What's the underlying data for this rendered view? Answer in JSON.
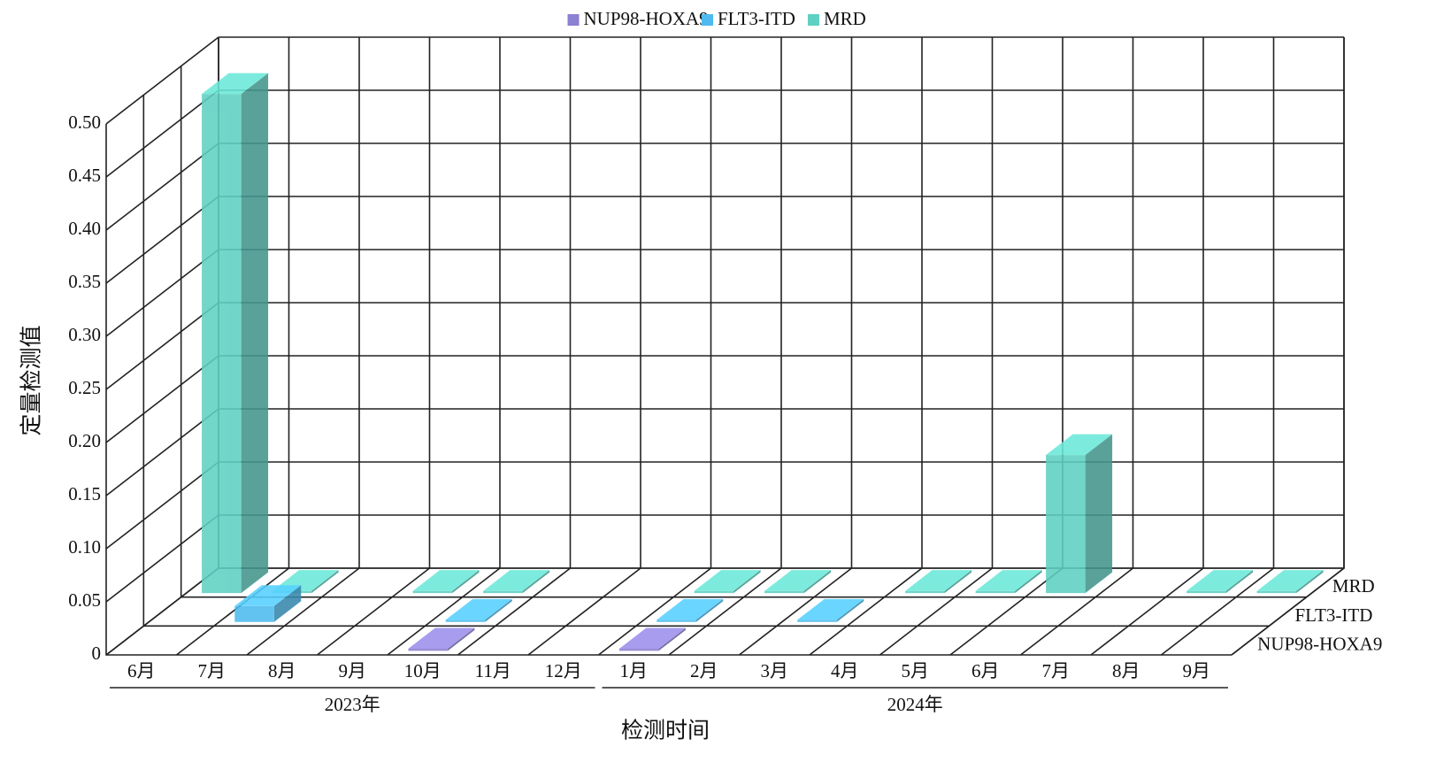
{
  "chart_data": {
    "type": "bar3d",
    "y_label": "定量检测值",
    "x_label": "检测时间",
    "categories": [
      "6月",
      "7月",
      "8月",
      "9月",
      "10月",
      "11月",
      "12月",
      "1月",
      "2月",
      "3月",
      "4月",
      "5月",
      "6月",
      "7月",
      "8月",
      "9月"
    ],
    "x_groups": [
      {
        "label": "2023年",
        "count": 7
      },
      {
        "label": "2024年",
        "count": 9
      }
    ],
    "series": [
      {
        "name": "NUP98-HOXA9",
        "color": "#8b80d2",
        "values": [
          null,
          null,
          null,
          null,
          0.002,
          null,
          null,
          0.002,
          null,
          null,
          null,
          null,
          null,
          null,
          null,
          null
        ]
      },
      {
        "name": "FLT3-ITD",
        "color": "#4dbbef",
        "values": [
          null,
          0.015,
          null,
          null,
          0.002,
          null,
          null,
          0.002,
          null,
          0.002,
          null,
          null,
          null,
          null,
          null,
          null
        ]
      },
      {
        "name": "MRD",
        "color": "#5fd0c2",
        "values": [
          0.47,
          0.002,
          null,
          0.002,
          0.002,
          null,
          null,
          0.002,
          0.002,
          null,
          0.002,
          0.002,
          0.13,
          null,
          0.002,
          0.002
        ]
      }
    ],
    "ylim": [
      0,
      0.5
    ],
    "yticks": [
      0,
      0.05,
      {
        "value": 0.1,
        "label": "0.10"
      },
      0.15,
      {
        "value": 0.2,
        "label": "0.20"
      },
      0.25,
      {
        "value": 0.3,
        "label": "0.30"
      },
      0.35,
      {
        "value": 0.4,
        "label": "0.40"
      },
      0.45,
      {
        "value": 0.5,
        "label": "0.50"
      }
    ],
    "grid": true,
    "legend": "top"
  }
}
